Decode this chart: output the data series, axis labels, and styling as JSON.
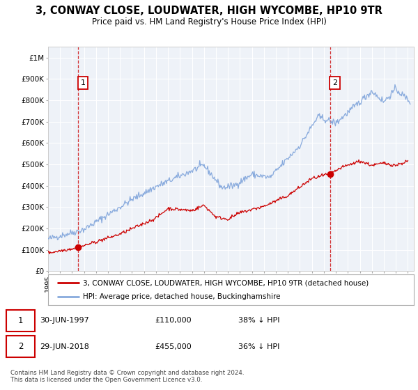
{
  "title": "3, CONWAY CLOSE, LOUDWATER, HIGH WYCOMBE, HP10 9TR",
  "subtitle": "Price paid vs. HM Land Registry's House Price Index (HPI)",
  "property_label": "3, CONWAY CLOSE, LOUDWATER, HIGH WYCOMBE, HP10 9TR (detached house)",
  "hpi_label": "HPI: Average price, detached house, Buckinghamshire",
  "property_color": "#cc0000",
  "hpi_color": "#88aadd",
  "annotation_color": "#cc0000",
  "marker1_date": 1997.5,
  "marker1_value": 110000,
  "marker1_label": "1",
  "marker2_date": 2018.5,
  "marker2_value": 455000,
  "marker2_label": "2",
  "footer": "Contains HM Land Registry data © Crown copyright and database right 2024.\nThis data is licensed under the Open Government Licence v3.0.",
  "ylim": [
    0,
    1050000
  ],
  "xlim": [
    1995,
    2025.5
  ],
  "plot_bg_color": "#eef2f8",
  "grid_color": "#ffffff"
}
